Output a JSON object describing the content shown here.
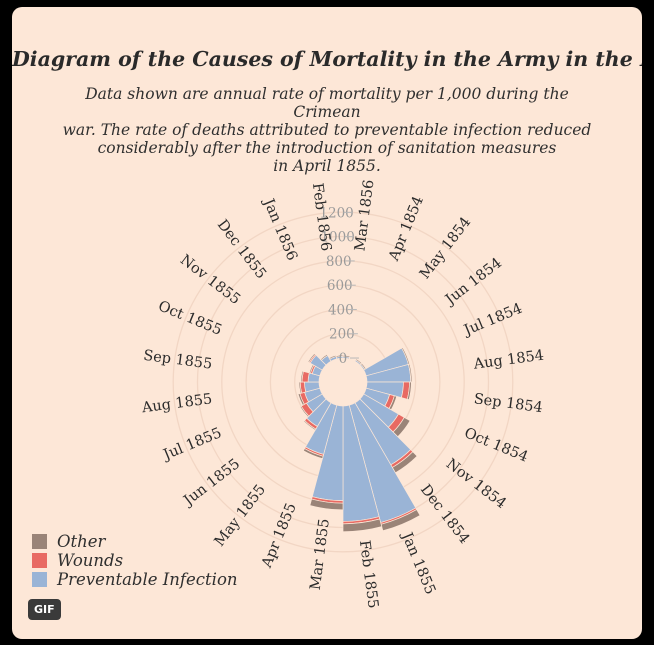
{
  "title": "Diagram of the Causes of Mortality in the Army in the East",
  "subtitle_lines": [
    "Data shown are annual rate of mortality per 1,000 during the Crimean",
    "war.  The rate of deaths attributed to preventable infection reduced",
    "considerably after the introduction of sanitation measures",
    "in April 1855."
  ],
  "badge": "GIF",
  "chart_data": {
    "type": "polar-area-stacked",
    "title": "Diagram of the Causes of Mortality in the Army in the East",
    "radial_axis": {
      "ticks": [
        0,
        200,
        400,
        600,
        800,
        1000,
        1200
      ],
      "max": 1200
    },
    "categories": [
      "Apr 1854",
      "May 1854",
      "Jun 1854",
      "Jul 1854",
      "Aug 1854",
      "Sep 1854",
      "Oct 1854",
      "Nov 1854",
      "Dec 1854",
      "Jan 1855",
      "Feb 1855",
      "Mar 1855",
      "Apr 1855",
      "May 1855",
      "Jun 1855",
      "Jul 1855",
      "Aug 1855",
      "Sep 1855",
      "Oct 1855",
      "Nov 1855",
      "Dec 1855",
      "Jan 1856",
      "Feb 1856",
      "Mar 1856"
    ],
    "series": [
      {
        "name": "Preventable Infection",
        "color": "#9ab4d6",
        "values": [
          1,
          12,
          11,
          360,
          360,
          300,
          200,
          330,
          590,
          1000,
          950,
          780,
          420,
          225,
          150,
          130,
          120,
          90,
          65,
          115,
          55,
          20,
          15,
          12
        ]
      },
      {
        "name": "Wounds",
        "color": "#e86a63",
        "values": [
          0,
          0,
          0,
          0,
          1,
          50,
          40,
          55,
          25,
          15,
          20,
          20,
          15,
          25,
          50,
          40,
          35,
          50,
          15,
          10,
          0,
          0,
          0,
          0
        ]
      },
      {
        "name": "Other",
        "color": "#9a8478",
        "values": [
          5,
          10,
          10,
          10,
          10,
          15,
          20,
          55,
          50,
          55,
          65,
          55,
          20,
          10,
          10,
          15,
          10,
          10,
          10,
          10,
          10,
          10,
          10,
          10
        ]
      }
    ],
    "legend": {
      "position": "bottom-left",
      "order": [
        "Other",
        "Wounds",
        "Preventable Infection"
      ]
    }
  }
}
